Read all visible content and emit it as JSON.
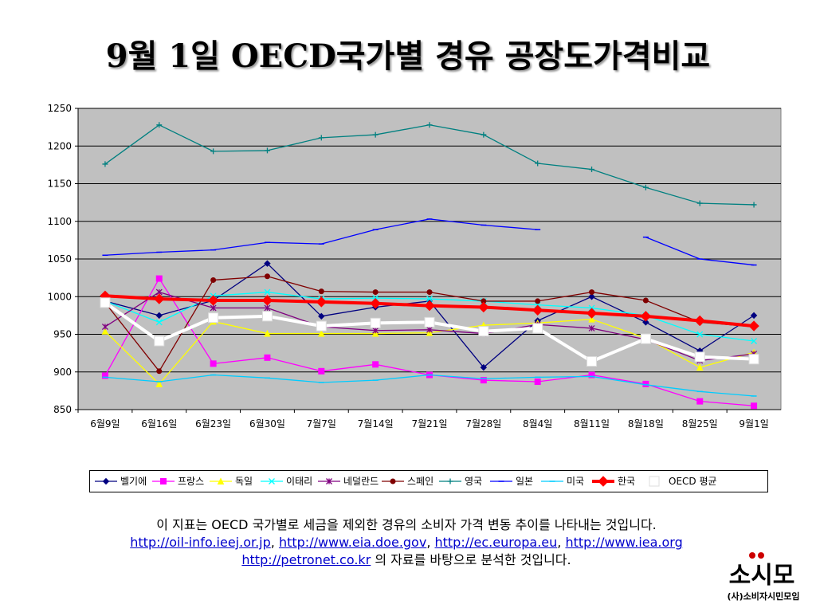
{
  "title": "9월 1일 OECD국가별 경유 공장도가격비교",
  "caption": {
    "line1": "이 지표는 OECD 국가별로 세금을 제외한 경유의 소비자 가격 변동 추이를 나타내는 것입니다.",
    "links": [
      "http://oil-info.ieej.or.jp",
      "http://www.eia.doe.gov",
      "http://ec.europa.eu",
      "http://www.iea.org"
    ],
    "link5": "http://petronet.co.kr",
    "line3_tail": " 의 자료를 바탕으로 분석한 것입니다.",
    "separator": ", "
  },
  "logo": {
    "mark": "소시모",
    "text": "(사)소비자시민모임"
  },
  "chart_data": {
    "type": "line",
    "title": "9월 1일 OECD국가별 경유 공장도가격비교",
    "categories": [
      "6월9일",
      "6월16일",
      "6월23일",
      "6월30일",
      "7월7일",
      "7월14일",
      "7월21일",
      "7월28일",
      "8월4일",
      "8월11일",
      "8월18일",
      "8월25일",
      "9월1일"
    ],
    "ylim": [
      850,
      1250
    ],
    "yticks": [
      850,
      900,
      950,
      1000,
      1050,
      1100,
      1150,
      1200,
      1250
    ],
    "grid": true,
    "legend_position": "bottom",
    "plot_background": "#c0c0c0",
    "series": [
      {
        "name": "벨기에",
        "color": "#000080",
        "marker": "diamond",
        "values": [
          994,
          975,
          995,
          1044,
          974,
          986,
          994,
          906,
          968,
          1000,
          966,
          928,
          975
        ]
      },
      {
        "name": "프랑스",
        "color": "#ff00ff",
        "marker": "square",
        "values": [
          895,
          1024,
          911,
          919,
          901,
          910,
          896,
          889,
          887,
          896,
          884,
          861,
          855
        ]
      },
      {
        "name": "독일",
        "color": "#ffff00",
        "marker": "triangle",
        "values": [
          954,
          884,
          967,
          951,
          951,
          951,
          952,
          962,
          965,
          970,
          945,
          906,
          926
        ]
      },
      {
        "name": "이태리",
        "color": "#00ffff",
        "marker": "x",
        "values": [
          994,
          966,
          1001,
          1006,
          997,
          998,
          997,
          994,
          989,
          985,
          975,
          950,
          941
        ]
      },
      {
        "name": "네덜란드",
        "color": "#800080",
        "marker": "asterisk",
        "values": [
          960,
          1006,
          985,
          985,
          960,
          955,
          956,
          951,
          963,
          958,
          943,
          915,
          924
        ]
      },
      {
        "name": "스페인",
        "color": "#800000",
        "marker": "circle",
        "values": [
          992,
          901,
          1022,
          1027,
          1007,
          1006,
          1006,
          994,
          994,
          1006,
          995,
          966,
          960
        ]
      },
      {
        "name": "영국",
        "color": "#008080",
        "marker": "plus",
        "values": [
          1176,
          1228,
          1193,
          1194,
          1211,
          1215,
          1228,
          1215,
          1177,
          1169,
          1145,
          1124,
          1122
        ]
      },
      {
        "name": "일본",
        "color": "#0000ff",
        "marker": "dash",
        "values": [
          1055,
          1059,
          1062,
          1072,
          1070,
          1089,
          1103,
          1095,
          1089,
          null,
          1079,
          1050,
          1042
        ]
      },
      {
        "name": "미국",
        "color": "#00ccff",
        "marker": "dash",
        "values": [
          893,
          887,
          896,
          892,
          886,
          889,
          896,
          891,
          893,
          894,
          883,
          874,
          868
        ]
      },
      {
        "name": "한국",
        "color": "#ff0000",
        "marker": "diamond",
        "bold": true,
        "values": [
          1001,
          997,
          995,
          995,
          993,
          991,
          988,
          986,
          982,
          978,
          974,
          968,
          961
        ]
      },
      {
        "name": "OECD 평균",
        "color": "#ffffff",
        "marker": "square",
        "bold": true,
        "values": [
          992,
          941,
          972,
          974,
          961,
          965,
          966,
          954,
          958,
          914,
          944,
          920,
          917
        ]
      }
    ]
  }
}
